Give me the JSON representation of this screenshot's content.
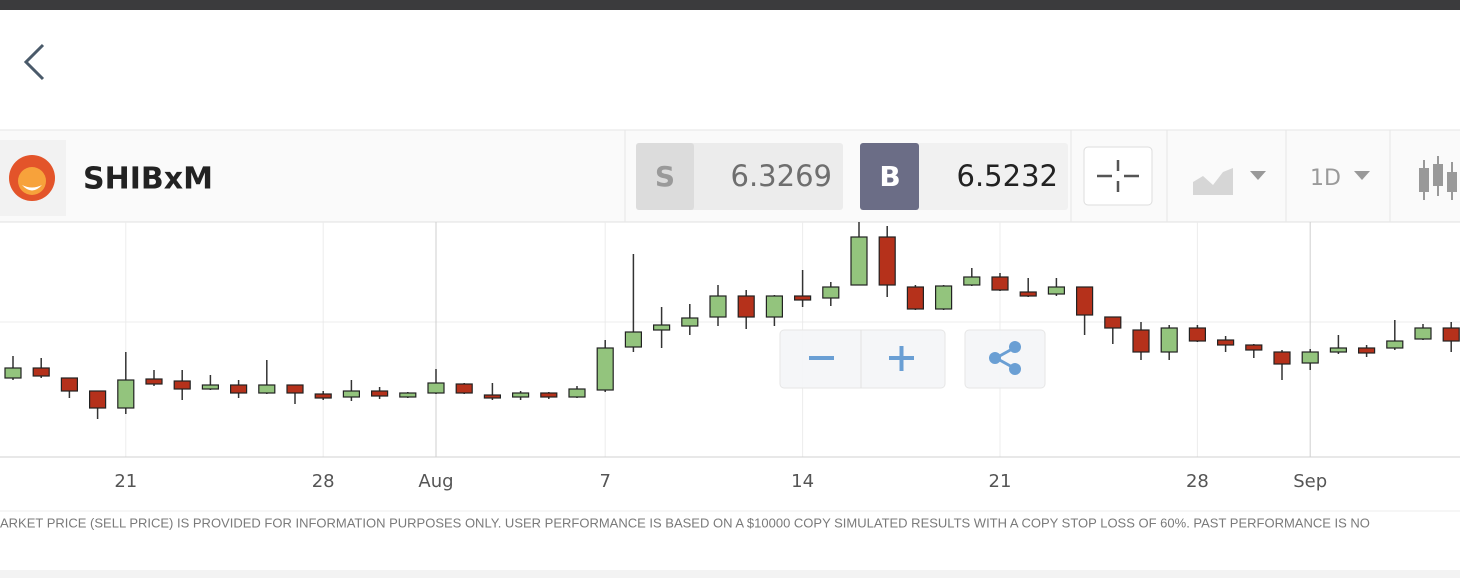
{
  "toolbar": {
    "instrument": "SHIBxM",
    "sell_label": "S",
    "sell_price": 6.3269,
    "buy_label": "B",
    "buy_price": 6.5232,
    "timeframe": "1D"
  },
  "chart_data": {
    "type": "candlestick",
    "categories": [
      null,
      null,
      null,
      null,
      "21",
      null,
      null,
      null,
      null,
      null,
      null,
      "28",
      null,
      null,
      null,
      "Aug",
      null,
      null,
      null,
      null,
      null,
      "7",
      null,
      null,
      null,
      null,
      null,
      null,
      "14",
      null,
      null,
      null,
      null,
      null,
      null,
      "21",
      null,
      null,
      null,
      null,
      null,
      null,
      "28",
      null,
      null,
      null,
      "Sep",
      null,
      null,
      null,
      null,
      null
    ],
    "open": [
      5.58,
      5.78,
      5.58,
      5.32,
      4.98,
      5.56,
      5.52,
      5.36,
      5.44,
      5.28,
      5.44,
      5.26,
      5.2,
      5.32,
      5.2,
      5.28,
      5.46,
      5.24,
      5.2,
      5.28,
      5.2,
      5.34,
      6.2,
      6.54,
      6.62,
      6.8,
      7.22,
      6.8,
      7.22,
      7.18,
      7.44,
      8.4,
      7.4,
      6.96,
      7.44,
      7.6,
      7.3,
      7.26,
      7.4,
      6.8,
      6.54,
      6.1,
      6.58,
      6.34,
      6.24,
      6.1,
      5.88,
      6.1,
      6.18,
      6.18,
      6.36,
      6.58
    ],
    "high": [
      6.02,
      5.98,
      5.58,
      5.32,
      6.1,
      5.74,
      5.74,
      5.64,
      5.54,
      5.94,
      5.44,
      5.32,
      5.54,
      5.4,
      5.3,
      5.76,
      5.48,
      5.48,
      5.32,
      5.3,
      5.42,
      6.34,
      8.06,
      7.0,
      7.06,
      7.44,
      7.34,
      7.24,
      7.74,
      7.5,
      8.7,
      8.62,
      7.44,
      7.44,
      7.78,
      7.68,
      7.58,
      7.58,
      7.4,
      6.8,
      6.7,
      6.64,
      6.64,
      6.42,
      6.26,
      6.14,
      6.16,
      6.44,
      6.24,
      6.74,
      6.66,
      6.7
    ],
    "low": [
      5.54,
      5.58,
      5.18,
      4.76,
      4.86,
      5.42,
      5.14,
      5.34,
      5.18,
      5.26,
      5.06,
      5.14,
      5.12,
      5.16,
      5.18,
      5.26,
      5.26,
      5.14,
      5.14,
      5.16,
      5.18,
      5.3,
      6.1,
      6.18,
      6.44,
      6.62,
      6.56,
      6.62,
      7.0,
      7.02,
      7.44,
      7.2,
      6.94,
      6.94,
      7.42,
      7.32,
      7.2,
      7.22,
      6.44,
      6.26,
      5.94,
      5.94,
      6.3,
      6.1,
      5.98,
      5.54,
      5.74,
      6.06,
      6.0,
      6.14,
      6.34,
      6.1
    ],
    "close": [
      5.78,
      5.62,
      5.32,
      4.98,
      5.54,
      5.46,
      5.36,
      5.44,
      5.28,
      5.44,
      5.28,
      5.18,
      5.32,
      5.22,
      5.28,
      5.48,
      5.28,
      5.18,
      5.28,
      5.2,
      5.36,
      6.18,
      6.5,
      6.64,
      6.78,
      7.22,
      6.8,
      7.22,
      7.14,
      7.4,
      8.4,
      7.44,
      6.96,
      7.42,
      7.6,
      7.34,
      7.22,
      7.4,
      6.84,
      6.58,
      6.1,
      6.58,
      6.32,
      6.24,
      6.14,
      5.86,
      6.1,
      6.18,
      6.08,
      6.32,
      6.58,
      6.32
    ],
    "up_color": "#93c47d",
    "down_color": "#b5311b",
    "ylim": [
      4,
      8.7
    ],
    "grid": true
  },
  "disclaimer": "ARKET PRICE (SELL PRICE) IS PROVIDED FOR INFORMATION PURPOSES ONLY. USER PERFORMANCE IS BASED ON A $10000 COPY SIMULATED RESULTS WITH A COPY STOP LOSS OF 60%. PAST PERFORMANCE IS NO"
}
